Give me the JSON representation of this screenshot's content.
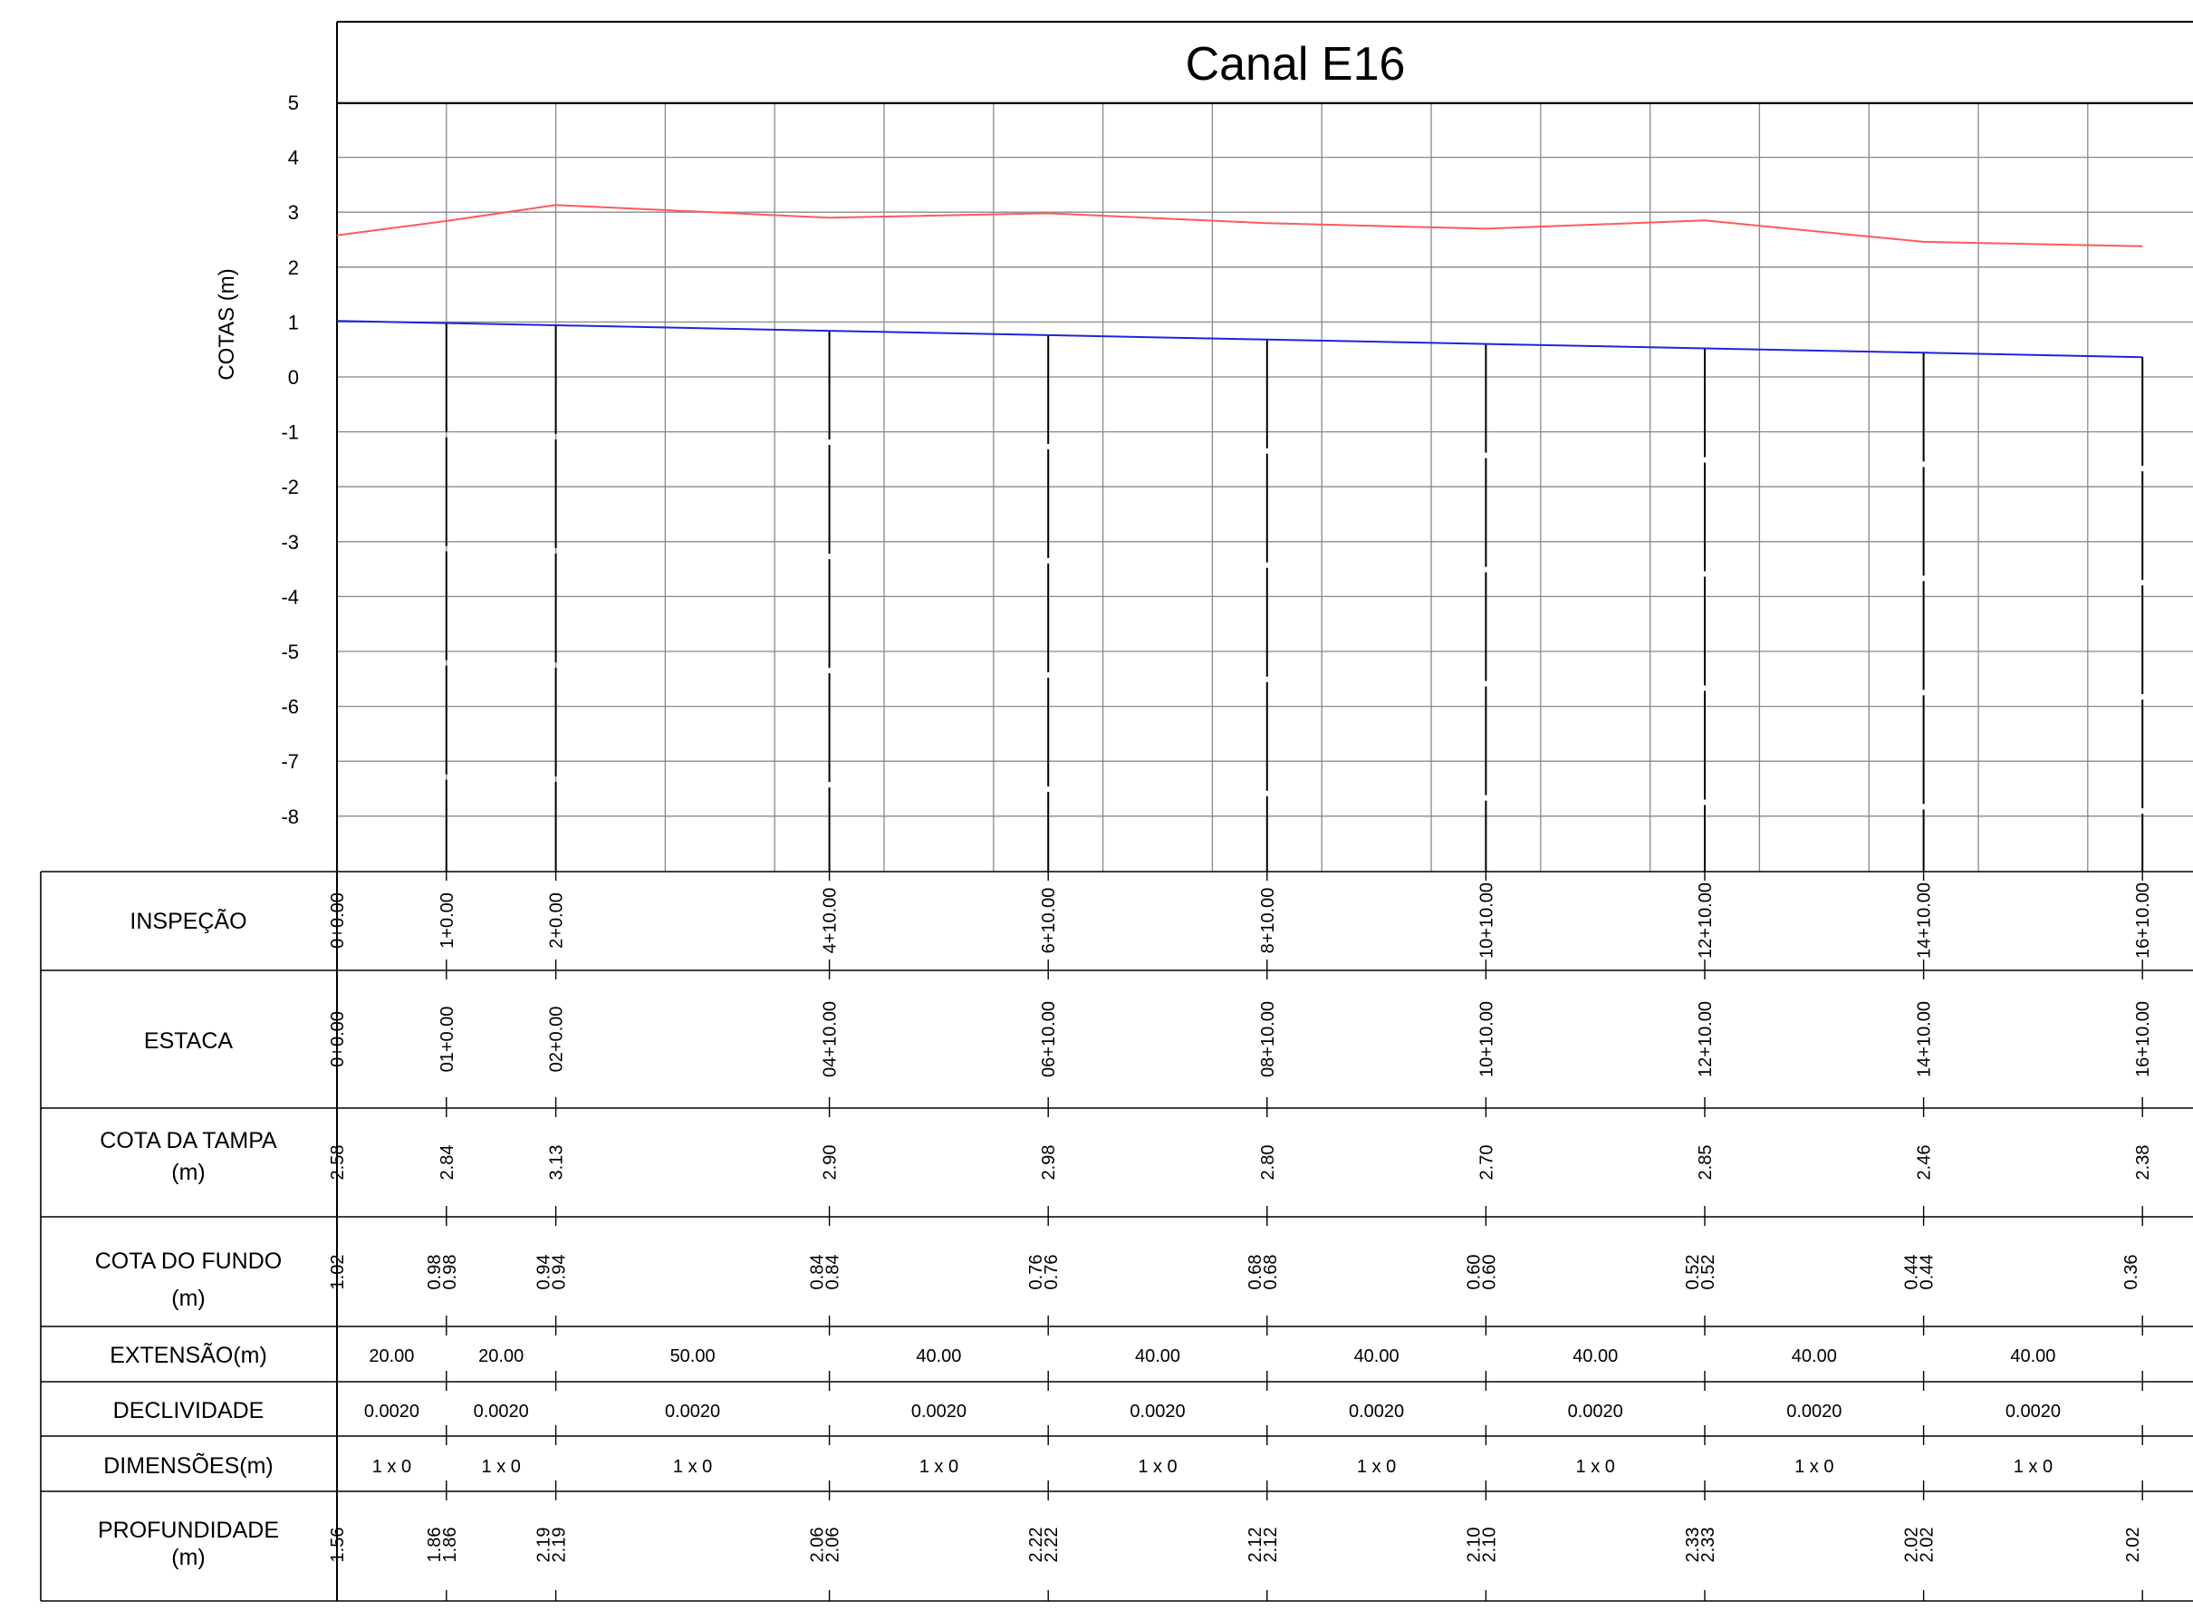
{
  "title": "Canal E16",
  "chart_data": {
    "type": "line",
    "title": "Canal E16",
    "ylabel": "COTAS (m)",
    "ylim": [
      -9,
      6
    ],
    "yticks": [
      5,
      4,
      3,
      2,
      1,
      0,
      -1,
      -2,
      -3,
      -4,
      -5,
      -6,
      -7,
      -8
    ],
    "grid": true,
    "x_chainage": [
      0,
      20,
      40,
      90,
      130,
      170,
      210,
      250,
      290,
      330
    ],
    "series": [
      {
        "key": "cota_tampa",
        "color": "#ff5a5a",
        "values": [
          2.58,
          2.84,
          3.13,
          2.9,
          2.98,
          2.8,
          2.7,
          2.85,
          2.46,
          2.38
        ]
      },
      {
        "key": "cota_fundo",
        "color": "#2222dd",
        "values": [
          1.02,
          0.98,
          0.94,
          0.84,
          0.76,
          0.68,
          0.6,
          0.52,
          0.44,
          0.36
        ]
      }
    ],
    "table": {
      "row_labels": {
        "inspecao": "INSPEÇÃO",
        "estaca": "ESTACA",
        "cota_tampa_1": "COTA DA TAMPA",
        "cota_tampa_2": "(m)",
        "cota_fundo_1": "COTA DO FUNDO",
        "cota_fundo_2": "(m)",
        "extensao": "EXTENSÃO(m)",
        "declividade": "DECLIVIDADE",
        "dimensoes": "DIMENSÕES(m)",
        "profundidade_1": "PROFUNDIDADE",
        "profundidade_2": "(m)"
      },
      "stations": [
        {
          "inspecao": "0+0.00",
          "estaca": "0+0.00",
          "tampa": "2.58",
          "fundo": [
            "1.02"
          ],
          "prof": [
            "1.56"
          ]
        },
        {
          "inspecao": "1+0.00",
          "estaca": "01+0.00",
          "tampa": "2.84",
          "fundo": [
            "0.98",
            "0.98"
          ],
          "prof": [
            "1.86",
            "1.86"
          ]
        },
        {
          "inspecao": "2+0.00",
          "estaca": "02+0.00",
          "tampa": "3.13",
          "fundo": [
            "0.94",
            "0.94"
          ],
          "prof": [
            "2.19",
            "2.19"
          ]
        },
        {
          "inspecao": "4+10.00",
          "estaca": "04+10.00",
          "tampa": "2.90",
          "fundo": [
            "0.84",
            "0.84"
          ],
          "prof": [
            "2.06",
            "2.06"
          ]
        },
        {
          "inspecao": "6+10.00",
          "estaca": "06+10.00",
          "tampa": "2.98",
          "fundo": [
            "0.76",
            "0.76"
          ],
          "prof": [
            "2.22",
            "2.22"
          ]
        },
        {
          "inspecao": "8+10.00",
          "estaca": "08+10.00",
          "tampa": "2.80",
          "fundo": [
            "0.68",
            "0.68"
          ],
          "prof": [
            "2.12",
            "2.12"
          ]
        },
        {
          "inspecao": "10+10.00",
          "estaca": "10+10.00",
          "tampa": "2.70",
          "fundo": [
            "0.60",
            "0.60"
          ],
          "prof": [
            "2.10",
            "2.10"
          ]
        },
        {
          "inspecao": "12+10.00",
          "estaca": "12+10.00",
          "tampa": "2.85",
          "fundo": [
            "0.52",
            "0.52"
          ],
          "prof": [
            "2.33",
            "2.33"
          ]
        },
        {
          "inspecao": "14+10.00",
          "estaca": "14+10.00",
          "tampa": "2.46",
          "fundo": [
            "0.44",
            "0.44"
          ],
          "prof": [
            "2.02",
            "2.02"
          ]
        },
        {
          "inspecao": "16+10.00",
          "estaca": "16+10.00",
          "tampa": "2.38",
          "fundo": [
            "0.36"
          ],
          "prof": [
            "2.02"
          ]
        }
      ],
      "segments": [
        {
          "extensao": "20.00",
          "declividade": "0.0020",
          "dimensoes": "1 x 0"
        },
        {
          "extensao": "20.00",
          "declividade": "0.0020",
          "dimensoes": "1 x 0"
        },
        {
          "extensao": "50.00",
          "declividade": "0.0020",
          "dimensoes": "1 x 0"
        },
        {
          "extensao": "40.00",
          "declividade": "0.0020",
          "dimensoes": "1 x 0"
        },
        {
          "extensao": "40.00",
          "declividade": "0.0020",
          "dimensoes": "1 x 0"
        },
        {
          "extensao": "40.00",
          "declividade": "0.0020",
          "dimensoes": "1 x 0"
        },
        {
          "extensao": "40.00",
          "declividade": "0.0020",
          "dimensoes": "1 x 0"
        },
        {
          "extensao": "40.00",
          "declividade": "0.0020",
          "dimensoes": "1 x 0"
        },
        {
          "extensao": "40.00",
          "declividade": "0.0020",
          "dimensoes": "1 x 0"
        }
      ]
    }
  }
}
